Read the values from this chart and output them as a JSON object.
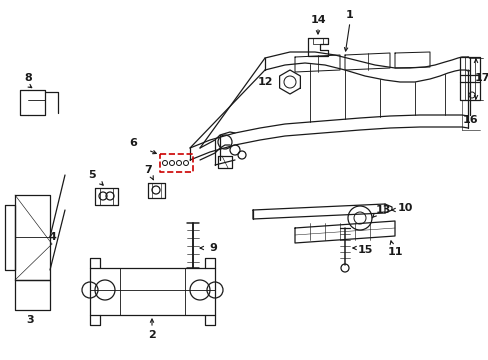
{
  "bg_color": "#ffffff",
  "line_color": "#1a1a1a",
  "red_color": "#cc0000",
  "fig_width": 4.89,
  "fig_height": 3.6,
  "dpi": 100
}
